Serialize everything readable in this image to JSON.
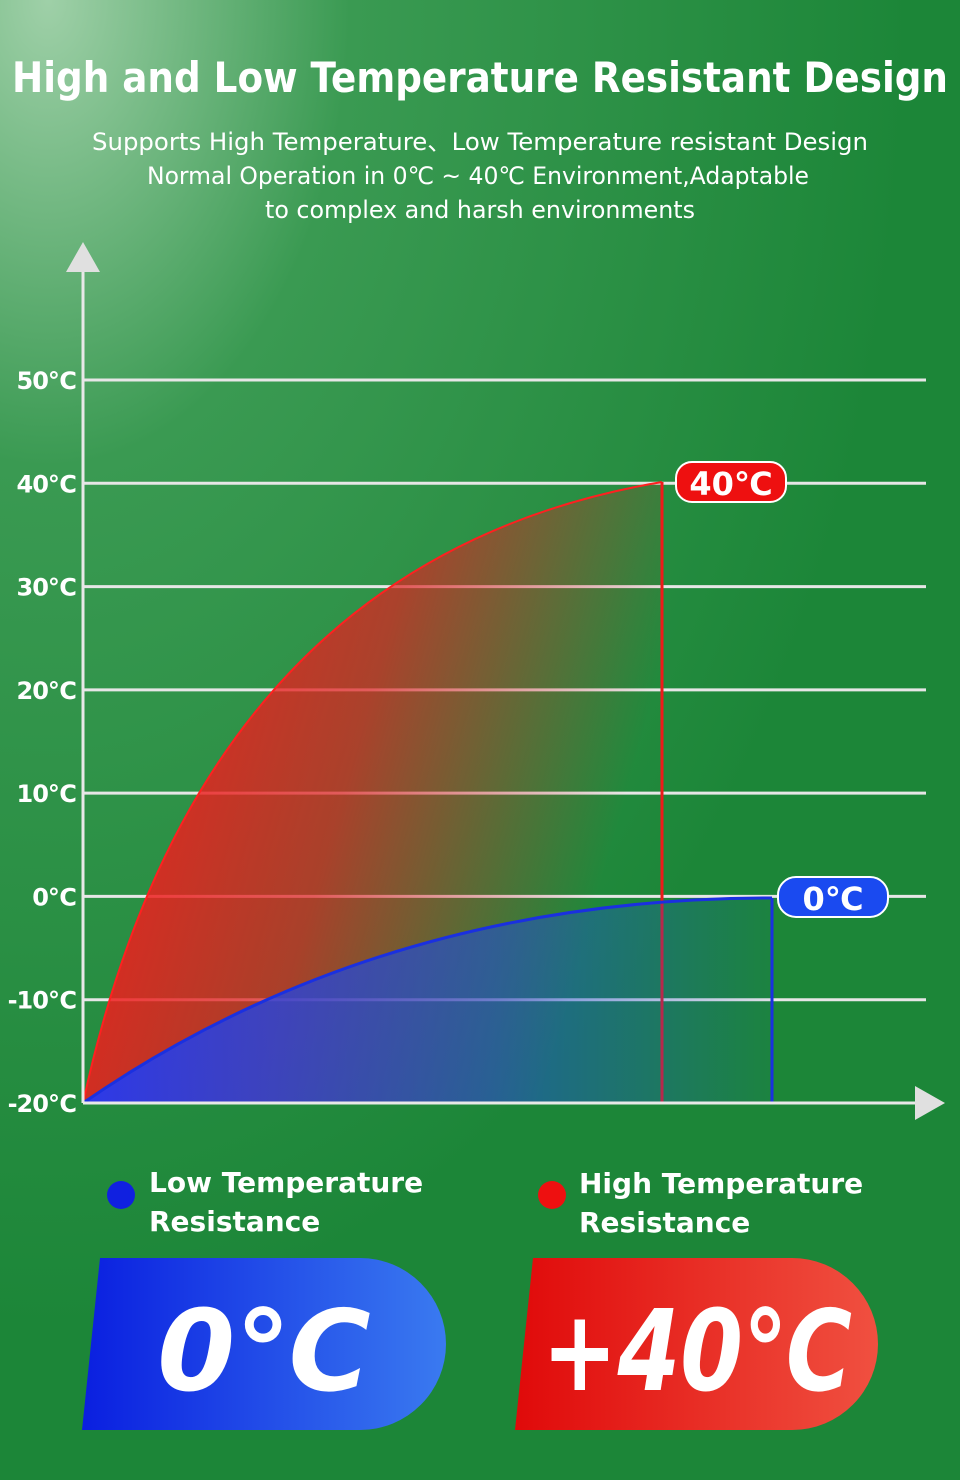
{
  "header": {
    "title": "High and Low Temperature Resistant Design",
    "subtitle": [
      "Supports High Temperature、Low Temperature resistant Design",
      "Normal Operation in 0℃ ~ 40℃ Environment,Adaptable",
      "to complex and harsh environments"
    ]
  },
  "chart": {
    "yticks": [
      "50℃",
      "40℃",
      "30℃",
      "20℃",
      "10℃",
      "0℃",
      "-10℃",
      "-20℃"
    ],
    "high_callout": "40℃",
    "low_callout": "0℃"
  },
  "legend": [
    {
      "lines": [
        "Low Temperature",
        "Resistance"
      ]
    },
    {
      "lines": [
        "High Temperature",
        "Resistance"
      ]
    }
  ],
  "badges": [
    "0℃",
    "+40℃"
  ]
}
